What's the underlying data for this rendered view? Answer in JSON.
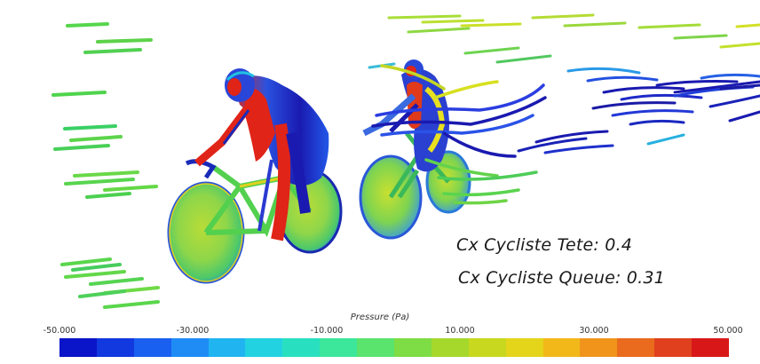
{
  "annotations": {
    "cx_lead": "Cx Cycliste Tete: 0.4",
    "cx_trail": "Cx Cycliste Queue: 0.31"
  },
  "legend": {
    "title": "Pressure (Pa)",
    "min": -50,
    "max": 50,
    "ticks": [
      "-50.000",
      "-30.000",
      "-10.000",
      "10.000",
      "30.000",
      "50.000"
    ],
    "colors": [
      "#0a14c8",
      "#1238e0",
      "#1a60f0",
      "#1f8cf5",
      "#20b4f0",
      "#22d2e0",
      "#28e0c0",
      "#3ce69a",
      "#5ae46e",
      "#7edc44",
      "#a6d82c",
      "#c8d81e",
      "#e4d41a",
      "#f2b81a",
      "#f0941c",
      "#ea6a1e",
      "#e0401e",
      "#d81818"
    ]
  },
  "visual": {
    "colors": {
      "deep_blue": "#1a1aa6",
      "blue": "#2258e8",
      "cyan": "#22c8e8",
      "green": "#4cd84a",
      "yellow_green": "#b8e030",
      "yellow": "#e8e020",
      "red": "#e02418",
      "dark_gray": "#2a2a2a"
    }
  }
}
